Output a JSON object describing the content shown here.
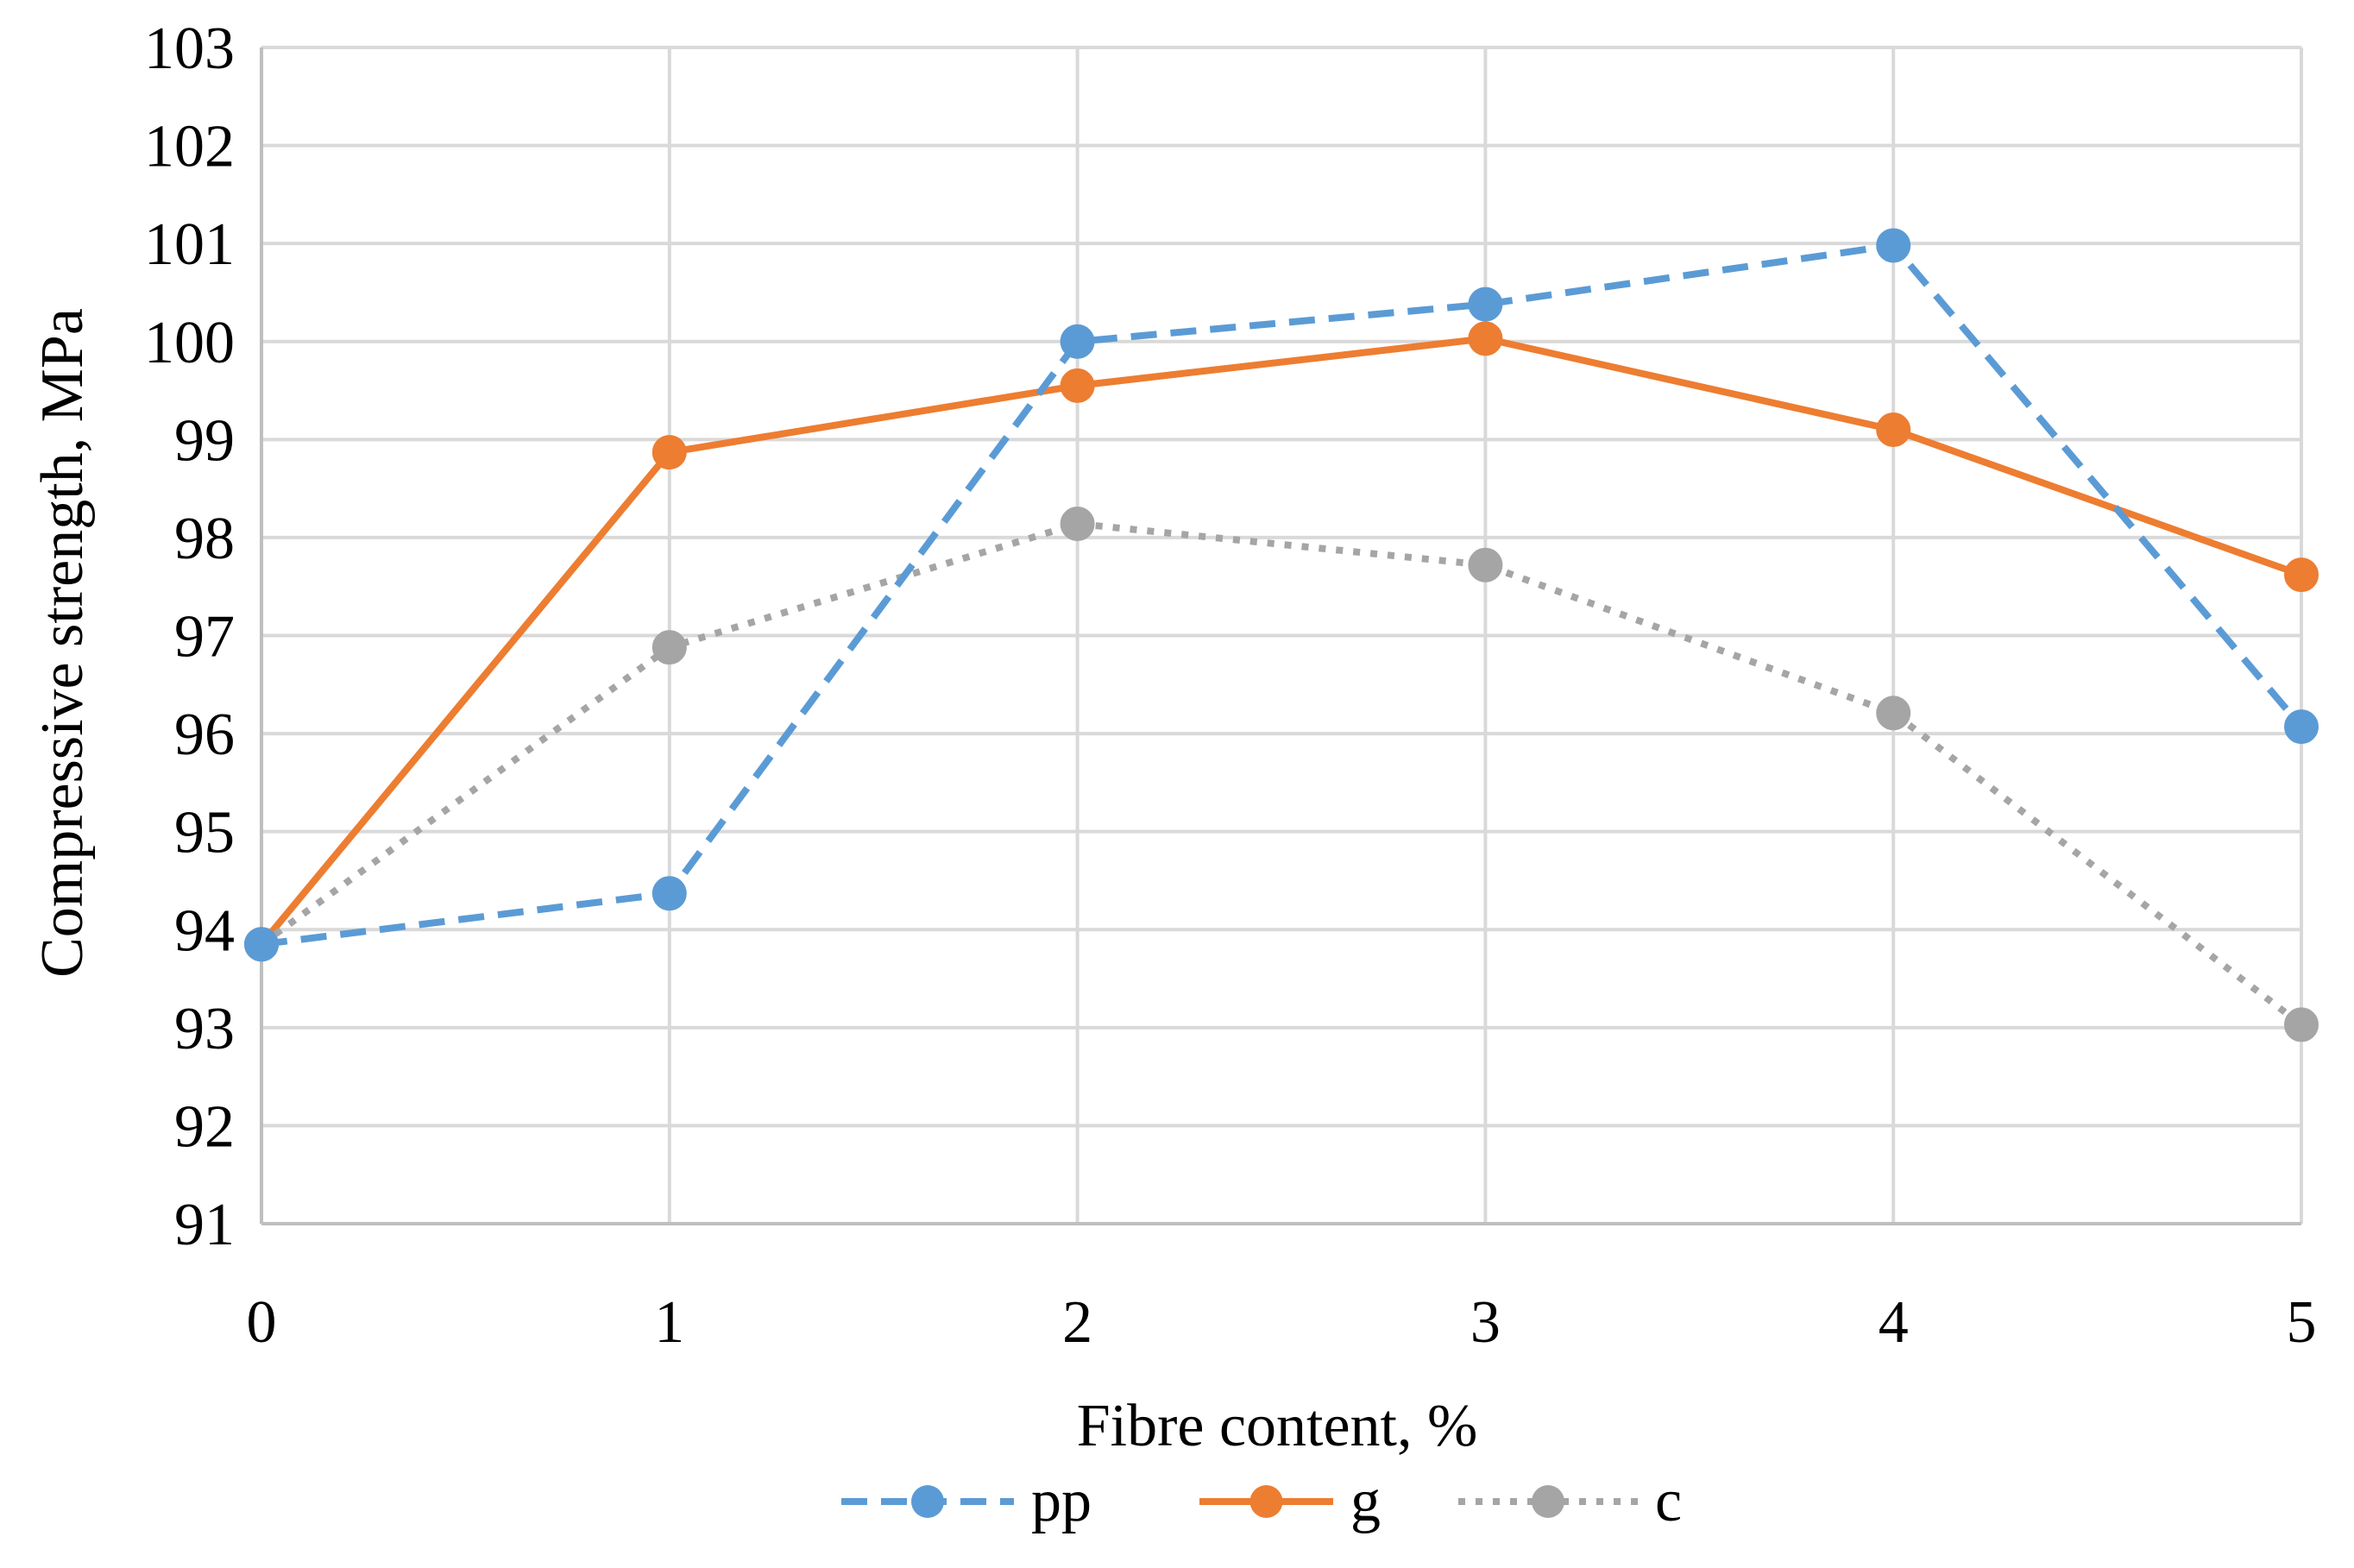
{
  "chart_data": {
    "type": "line",
    "title": "",
    "xlabel": "Fibre content, %",
    "ylabel": "Compressive  strength, MPa",
    "x": [
      0,
      1,
      2,
      3,
      4,
      5
    ],
    "xticks": [
      "0",
      "1",
      "2",
      "3",
      "4",
      "5"
    ],
    "yticks": [
      "91",
      "92",
      "93",
      "94",
      "95",
      "96",
      "97",
      "98",
      "99",
      "100",
      "101",
      "102",
      "103"
    ],
    "xlim": [
      0,
      5
    ],
    "ylim": [
      91,
      103
    ],
    "grid": true,
    "legend_position": "bottom",
    "series": [
      {
        "name": "pp",
        "values": [
          93.85,
          94.37,
          100.0,
          100.38,
          100.98,
          96.07
        ],
        "color": "#5b9bd5",
        "style": "dashed"
      },
      {
        "name": "g",
        "values": [
          93.85,
          98.87,
          99.55,
          100.03,
          99.1,
          97.62
        ],
        "color": "#ed7d31",
        "style": "solid"
      },
      {
        "name": "c",
        "values": [
          93.85,
          96.88,
          98.14,
          97.72,
          96.21,
          93.03
        ],
        "color": "#a5a5a5",
        "style": "dotted"
      }
    ]
  }
}
